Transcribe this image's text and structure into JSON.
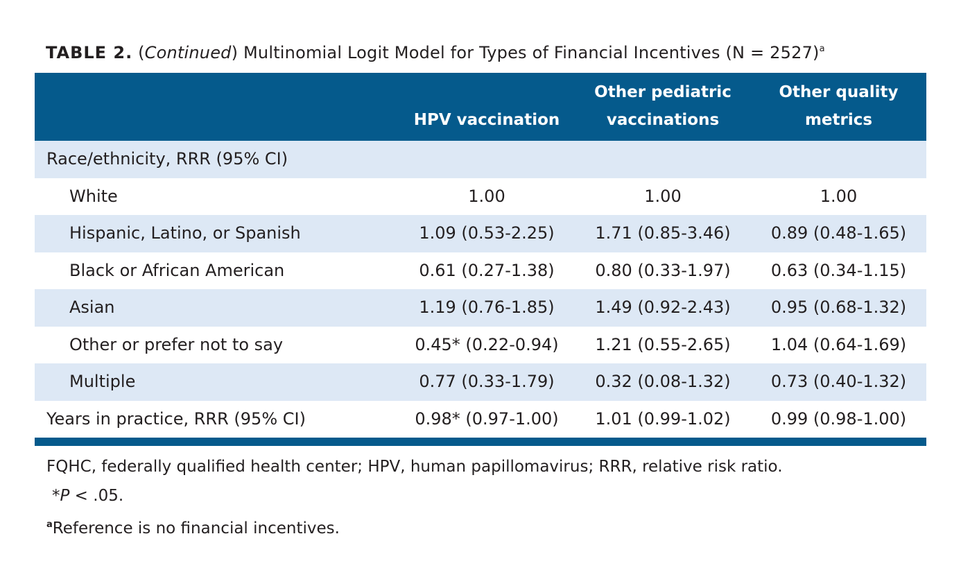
{
  "title": {
    "label": "TABLE 2.",
    "paren_open": "(",
    "continued": "Continued",
    "paren_close": ")",
    "text": " Multinomial Logit Model for Types of Financial Incentives (N = 2527)",
    "superscript": "a"
  },
  "header": {
    "col1": "HPV vaccination",
    "col2_line1": "Other pediatric",
    "col2_line2": "vaccinations",
    "col3_line1": "Other quality",
    "col3_line2": "metrics"
  },
  "rows": [
    {
      "label": "Race/ethnicity, RRR (95% CI)",
      "c1": "",
      "c2": "",
      "c3": ""
    },
    {
      "label": "White",
      "c1": "1.00",
      "c2": "1.00",
      "c3": "1.00"
    },
    {
      "label": "Hispanic, Latino, or Spanish",
      "c1": "1.09 (0.53-2.25)",
      "c2": "1.71 (0.85-3.46)",
      "c3": "0.89 (0.48-1.65)"
    },
    {
      "label": "Black or African American",
      "c1": "0.61 (0.27-1.38)",
      "c2": "0.80 (0.33-1.97)",
      "c3": "0.63 (0.34-1.15)"
    },
    {
      "label": "Asian",
      "c1": "1.19 (0.76-1.85)",
      "c2": "1.49 (0.92-2.43)",
      "c3": "0.95 (0.68-1.32)"
    },
    {
      "label": "Other or prefer not to say",
      "c1": "0.45* (0.22-0.94)",
      "c2": "1.21 (0.55-2.65)",
      "c3": "1.04 (0.64-1.69)"
    },
    {
      "label": "Multiple",
      "c1": "0.77 (0.33-1.79)",
      "c2": "0.32 (0.08-1.32)",
      "c3": "0.73 (0.40-1.32)"
    },
    {
      "label": "Years in practice, RRR (95% CI)",
      "c1": "0.98* (0.97-1.00)",
      "c2": "1.01 (0.99-1.02)",
      "c3": "0.99 (0.98-1.00)"
    }
  ],
  "notes": {
    "abbreviations": "FQHC, federally qualified health center; HPV, human papillomavirus; RRR, relative risk ratio.",
    "sig_star": "*",
    "sig_p": "P",
    "sig_rest": " < .05.",
    "ref_superscript": "a",
    "reference": "Reference is no financial incentives."
  },
  "colors": {
    "header_bg": "#055a8c",
    "alt_row_bg": "#dde8f5",
    "text": "#231f20"
  }
}
